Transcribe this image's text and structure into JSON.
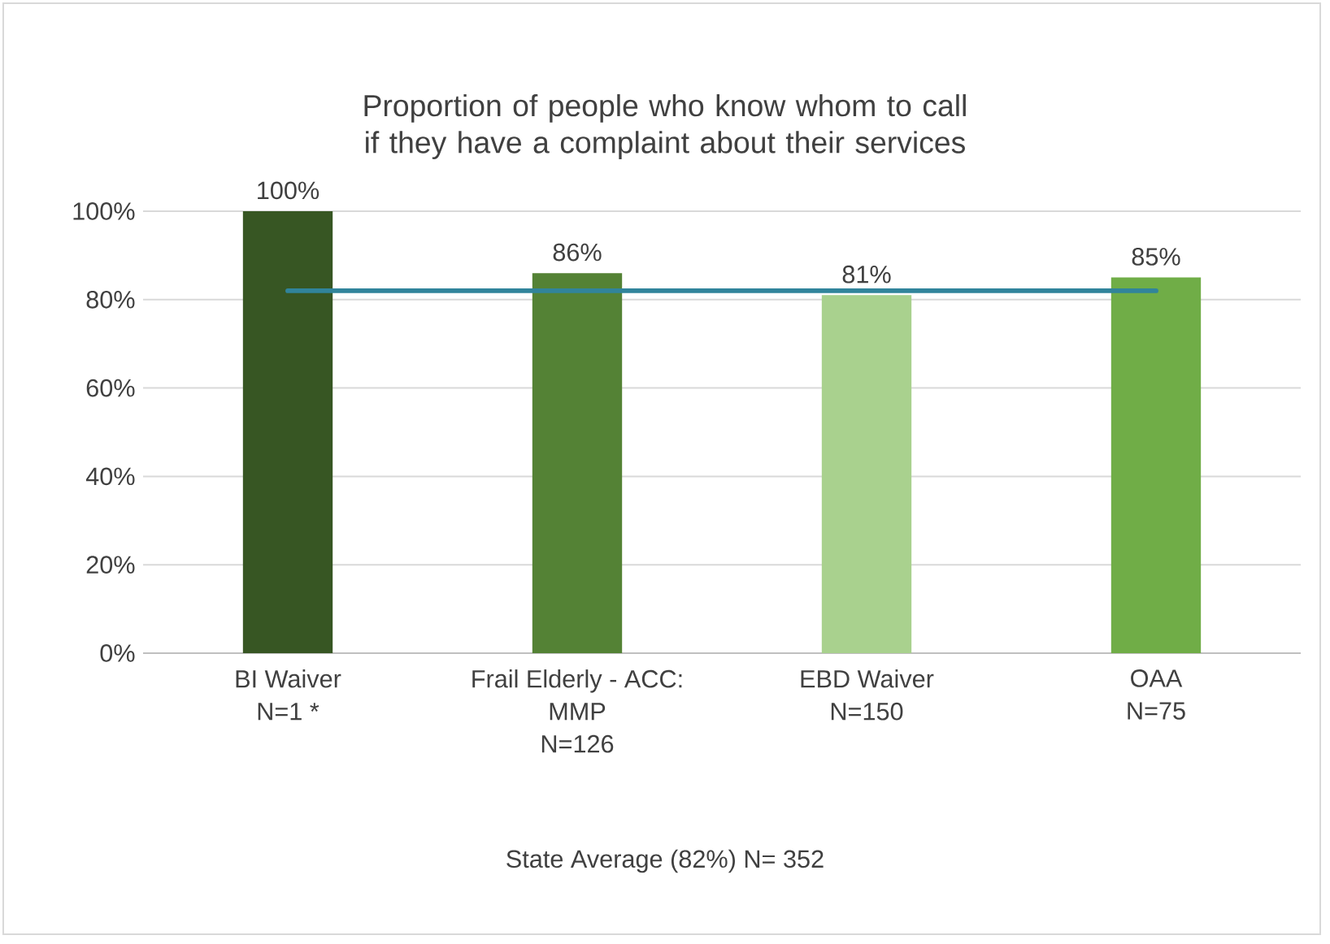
{
  "chart_data": {
    "type": "bar",
    "title": "Proportion of people who know whom to call if they have a complaint about their services",
    "categories": [
      "BI Waiver\nN=1 *",
      "Frail Elderly - ACC:\nMMP\nN=126",
      "EBD Waiver\nN=150",
      "OAA\nN=75"
    ],
    "series": [
      {
        "values": [
          100,
          86,
          81,
          85
        ],
        "colors": [
          "#375623",
          "#548235",
          "#a9d18e",
          "#70ad47"
        ],
        "value_labels": [
          "100%",
          "86%",
          "81%",
          "85%"
        ]
      },
      {
        "type": "line",
        "color": "#31849b",
        "values": [
          82,
          82,
          82,
          82
        ]
      }
    ],
    "ylim": [
      0,
      100
    ],
    "yticks": [
      {
        "value": 0,
        "label": "0%"
      },
      {
        "value": 20,
        "label": "20%"
      },
      {
        "value": 40,
        "label": "40%"
      },
      {
        "value": 60,
        "label": "60%"
      },
      {
        "value": 80,
        "label": "80%"
      },
      {
        "value": 100,
        "label": "100%"
      }
    ],
    "grid": "y",
    "annotations": [
      "State Average (82%) N= 352"
    ]
  }
}
